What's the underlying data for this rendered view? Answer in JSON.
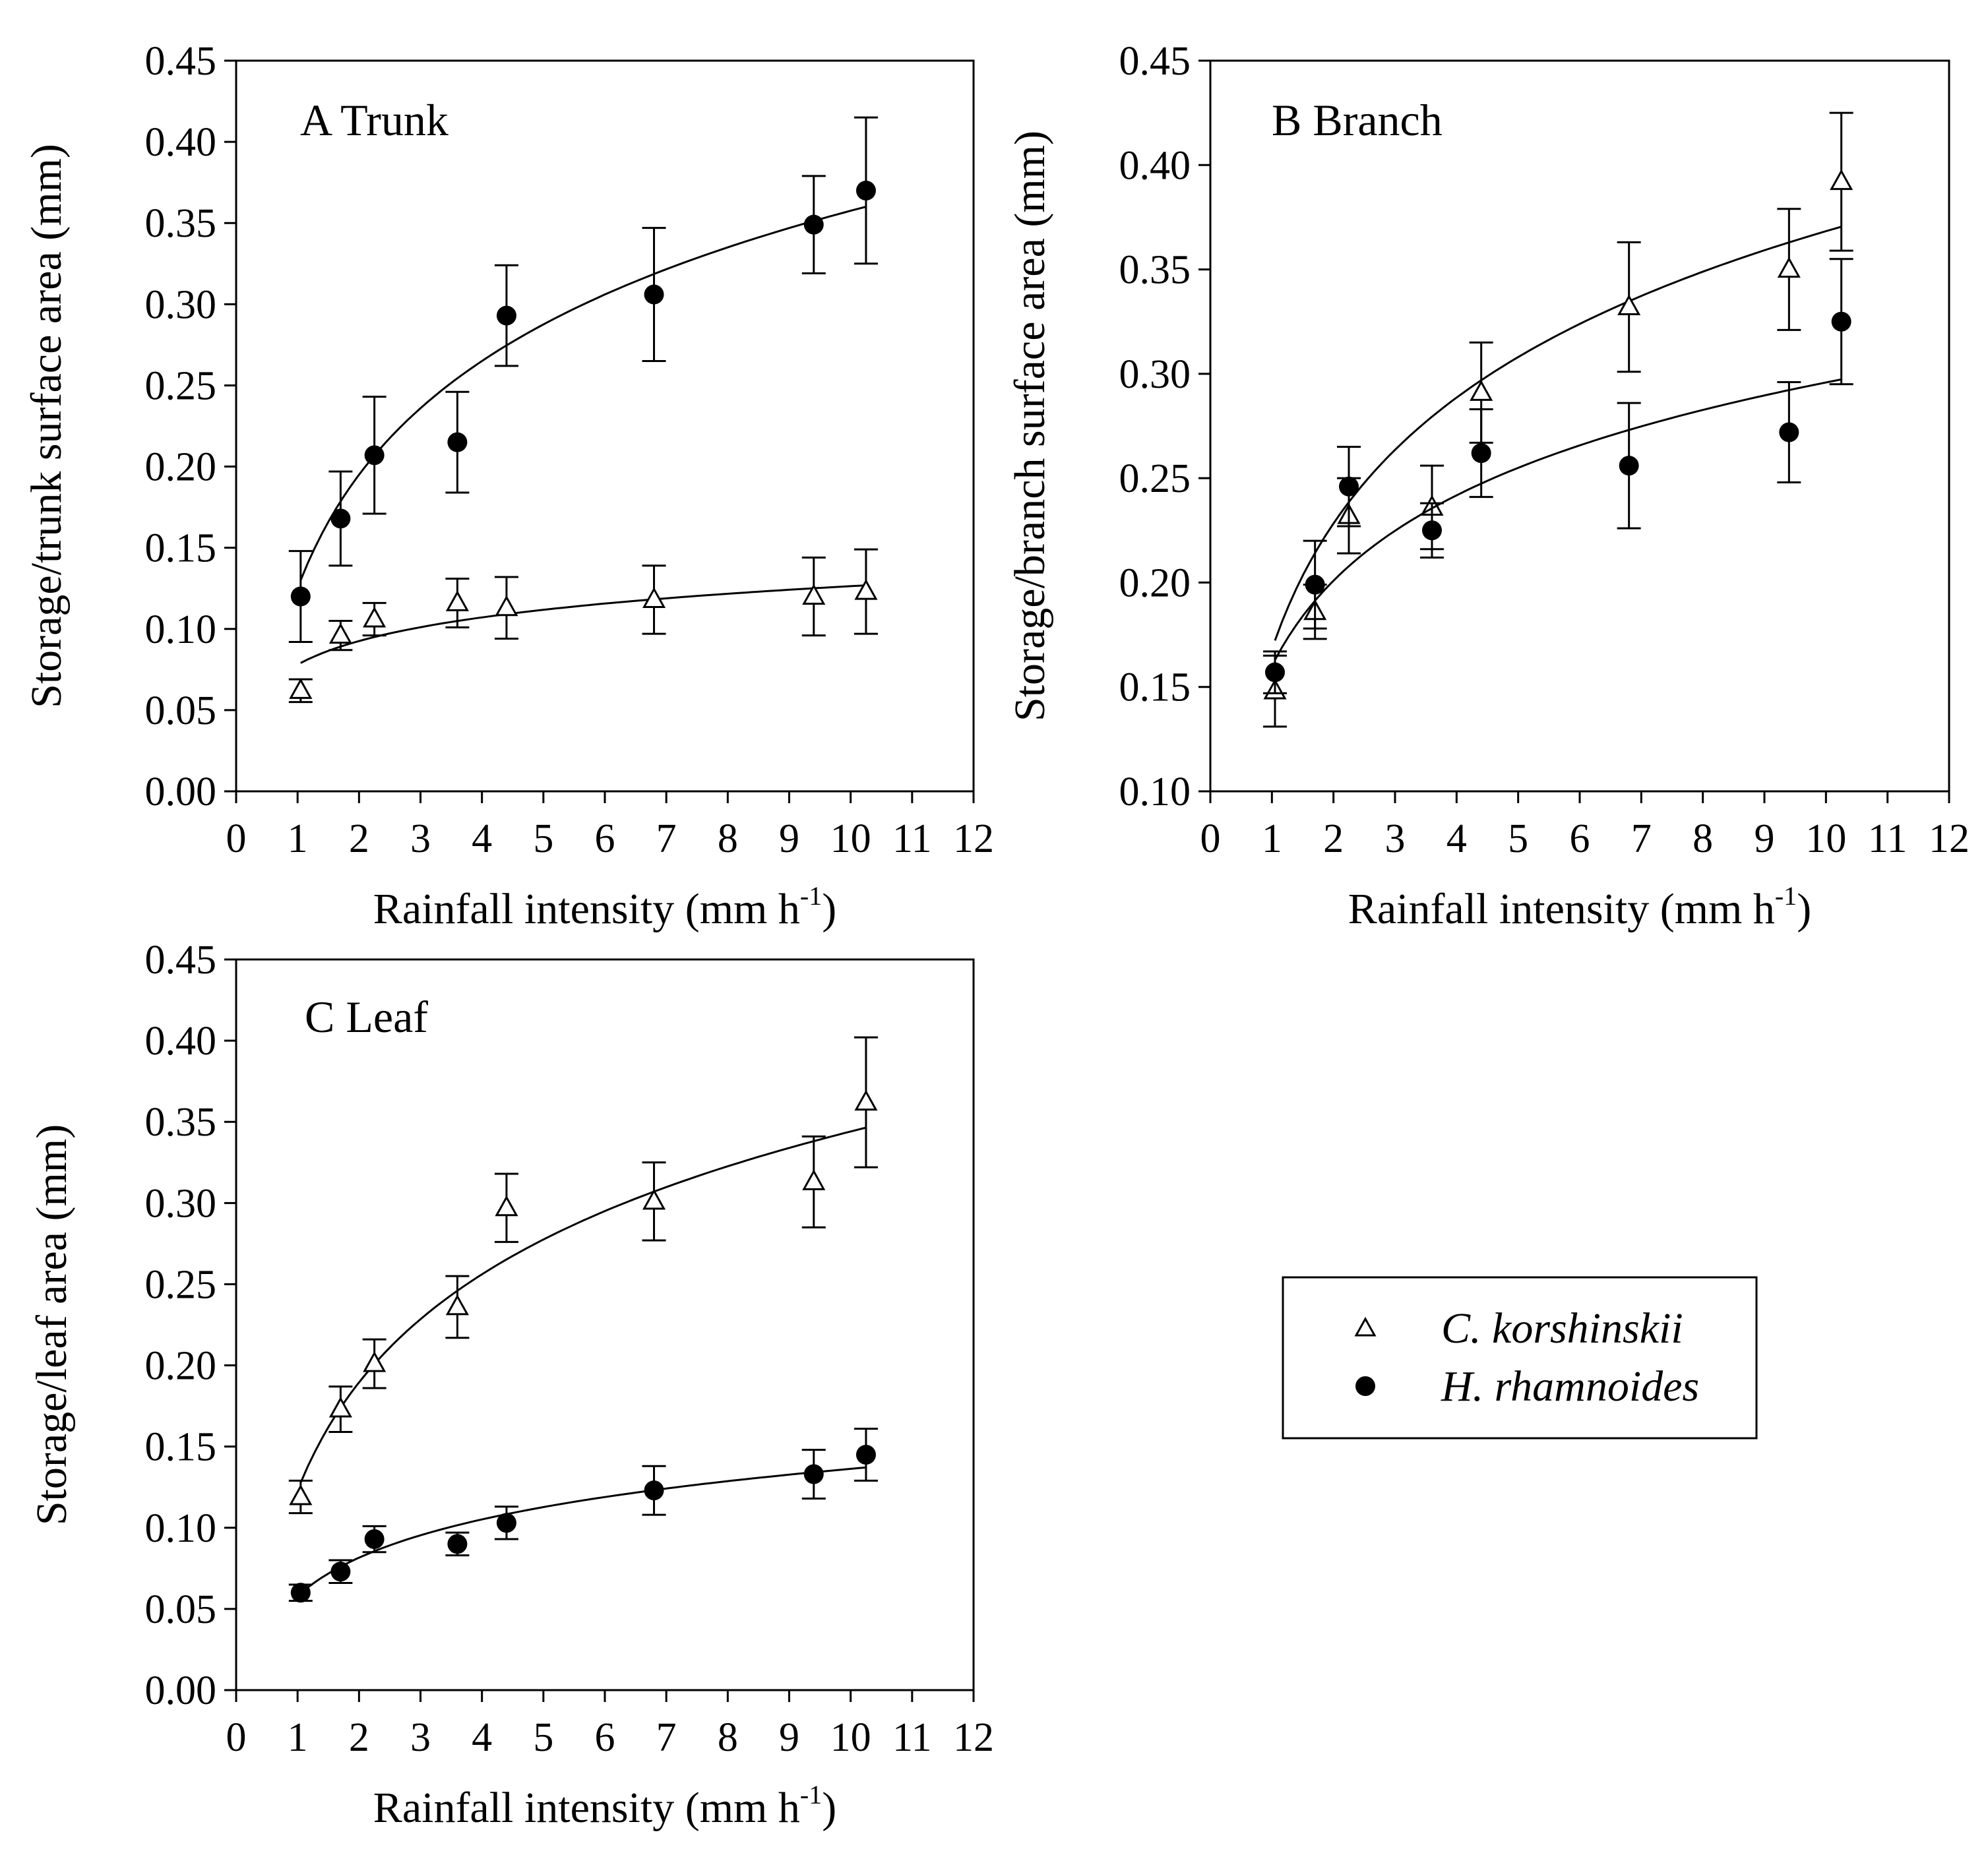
{
  "legend": {
    "items": [
      {
        "label": "C. korshinskii",
        "marker": "open-triangle"
      },
      {
        "label": "H. rhamnoides",
        "marker": "filled-circle"
      }
    ]
  },
  "chart_data": [
    {
      "type": "scatter",
      "panel": "A",
      "title": "A  Trunk",
      "xlabel": "Rainfall intensity (mm h",
      "xlabel_sup": "-1",
      "xlabel_close": ")",
      "ylabel": "Storage/trunk surface area (mm)",
      "xlim": [
        0,
        12
      ],
      "ylim": [
        0,
        0.45
      ],
      "xticks": [
        0,
        1,
        2,
        3,
        4,
        5,
        6,
        7,
        8,
        9,
        10,
        11,
        12
      ],
      "yticks": [
        0,
        0.05,
        0.1,
        0.15,
        0.2,
        0.25,
        0.3,
        0.35,
        0.4,
        0.45
      ],
      "x_tick_labels": [
        "0",
        "1",
        "2",
        "3",
        "4",
        "5",
        "6",
        "7",
        "8",
        "9",
        "10",
        "11",
        "12"
      ],
      "y_tick_labels": [
        "0.00",
        "0.05",
        "0.10",
        "0.15",
        "0.20",
        "0.25",
        "0.30",
        "0.35",
        "0.40",
        "0.45"
      ],
      "series": [
        {
          "name": "C. korshinskii",
          "marker": "triangle",
          "x": [
            1.05,
            1.7,
            2.25,
            3.6,
            4.4,
            6.8,
            9.4,
            10.25
          ],
          "y": [
            0.062,
            0.096,
            0.106,
            0.116,
            0.113,
            0.118,
            0.12,
            0.123
          ],
          "err": [
            0.007,
            0.009,
            0.01,
            0.015,
            0.019,
            0.021,
            0.024,
            0.026
          ],
          "fit": {
            "a": 0.078,
            "b": 0.021
          }
        },
        {
          "name": "H. rhamnoides",
          "marker": "circle",
          "x": [
            1.05,
            1.7,
            2.25,
            3.6,
            4.4,
            6.8,
            9.4,
            10.25
          ],
          "y": [
            0.12,
            0.168,
            0.207,
            0.215,
            0.293,
            0.306,
            0.349,
            0.37
          ],
          "err": [
            0.028,
            0.029,
            0.036,
            0.031,
            0.031,
            0.041,
            0.03,
            0.045
          ],
          "fit": {
            "a": 0.125,
            "b": 0.101
          }
        }
      ]
    },
    {
      "type": "scatter",
      "panel": "B",
      "title": "B  Branch",
      "xlabel": "Rainfall intensity (mm h",
      "xlabel_sup": "-1",
      "xlabel_close": ")",
      "ylabel": "Storage/branch surface area (mm)",
      "xlim": [
        0,
        12
      ],
      "ylim": [
        0.1,
        0.45
      ],
      "xticks": [
        0,
        1,
        2,
        3,
        4,
        5,
        6,
        7,
        8,
        9,
        10,
        11,
        12
      ],
      "yticks": [
        0.1,
        0.15,
        0.2,
        0.25,
        0.3,
        0.35,
        0.4,
        0.45
      ],
      "x_tick_labels": [
        "0",
        "1",
        "2",
        "3",
        "4",
        "5",
        "6",
        "7",
        "8",
        "9",
        "10",
        "11",
        "12"
      ],
      "y_tick_labels": [
        "0.10",
        "0.15",
        "0.20",
        "0.25",
        "0.30",
        "0.35",
        "0.40",
        "0.45"
      ],
      "series": [
        {
          "name": "C. korshinskii",
          "marker": "triangle",
          "x": [
            1.05,
            1.7,
            2.25,
            3.6,
            4.4,
            6.8,
            9.4,
            10.25
          ],
          "y": [
            0.148,
            0.186,
            0.232,
            0.236,
            0.291,
            0.332,
            0.35,
            0.392
          ],
          "err": [
            0.017,
            0.013,
            0.018,
            0.02,
            0.024,
            0.031,
            0.029,
            0.033
          ],
          "fit": {
            "a": 0.168,
            "b": 0.087
          }
        },
        {
          "name": "H. rhamnoides",
          "marker": "circle",
          "x": [
            1.05,
            1.7,
            2.25,
            3.6,
            4.4,
            6.8,
            9.4,
            10.25
          ],
          "y": [
            0.157,
            0.199,
            0.246,
            0.225,
            0.262,
            0.256,
            0.272,
            0.325
          ],
          "err": [
            0.01,
            0.021,
            0.019,
            0.013,
            0.021,
            0.03,
            0.024,
            0.03
          ],
          "fit": {
            "a": 0.16,
            "b": 0.059
          }
        }
      ]
    },
    {
      "type": "scatter",
      "panel": "C",
      "title": "C  Leaf",
      "xlabel": "Rainfall intensity (mm h",
      "xlabel_sup": "-1",
      "xlabel_close": ")",
      "ylabel": "Storage/leaf area (mm)",
      "xlim": [
        0,
        12
      ],
      "ylim": [
        0,
        0.45
      ],
      "xticks": [
        0,
        1,
        2,
        3,
        4,
        5,
        6,
        7,
        8,
        9,
        10,
        11,
        12
      ],
      "yticks": [
        0,
        0.05,
        0.1,
        0.15,
        0.2,
        0.25,
        0.3,
        0.35,
        0.4,
        0.45
      ],
      "x_tick_labels": [
        "0",
        "1",
        "2",
        "3",
        "4",
        "5",
        "6",
        "7",
        "8",
        "9",
        "10",
        "11",
        "12"
      ],
      "y_tick_labels": [
        "0.00",
        "0.05",
        "0.10",
        "0.15",
        "0.20",
        "0.25",
        "0.30",
        "0.35",
        "0.40",
        "0.45"
      ],
      "series": [
        {
          "name": "C. korshinskii",
          "marker": "triangle",
          "x": [
            1.05,
            1.7,
            2.25,
            3.6,
            4.4,
            6.8,
            9.4,
            10.25
          ],
          "y": [
            0.119,
            0.173,
            0.201,
            0.236,
            0.297,
            0.301,
            0.313,
            0.362
          ],
          "err": [
            0.01,
            0.014,
            0.015,
            0.019,
            0.021,
            0.024,
            0.028,
            0.04
          ],
          "fit": {
            "a": 0.123,
            "b": 0.096
          }
        },
        {
          "name": "H. rhamnoides",
          "marker": "circle",
          "x": [
            1.05,
            1.7,
            2.25,
            3.6,
            4.4,
            6.8,
            9.4,
            10.25
          ],
          "y": [
            0.06,
            0.073,
            0.093,
            0.09,
            0.103,
            0.123,
            0.133,
            0.145
          ],
          "err": [
            0.005,
            0.007,
            0.008,
            0.007,
            0.01,
            0.015,
            0.015,
            0.016
          ],
          "fit": {
            "a": 0.058,
            "b": 0.034
          }
        }
      ]
    }
  ]
}
